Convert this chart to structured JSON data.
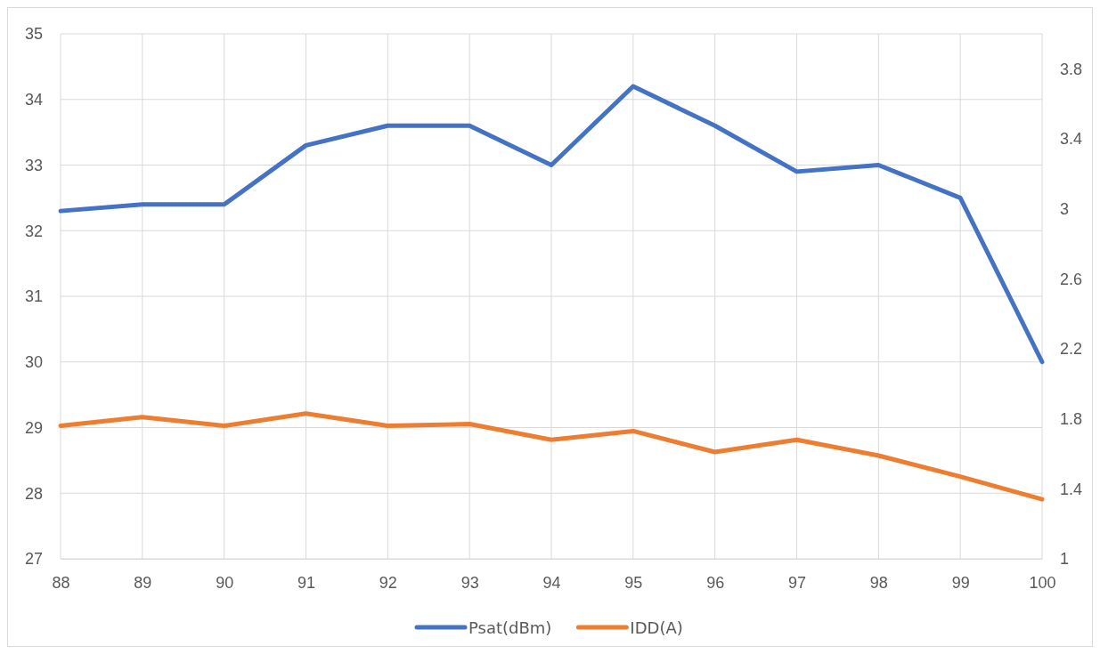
{
  "chart_data": {
    "type": "line",
    "x": [
      88,
      89,
      90,
      91,
      92,
      93,
      94,
      95,
      96,
      97,
      98,
      99,
      100
    ],
    "xlim": [
      88,
      100
    ],
    "xticks": [
      88,
      89,
      90,
      91,
      92,
      93,
      94,
      95,
      96,
      97,
      98,
      99,
      100
    ],
    "ylim": [
      27,
      35
    ],
    "yticks": [
      27,
      28,
      29,
      30,
      31,
      32,
      33,
      34,
      35
    ],
    "y2lim": [
      1,
      4
    ],
    "y2ticks": [
      1,
      1.4,
      1.8,
      2.2,
      2.6,
      3,
      3.4,
      3.8
    ],
    "grid": true,
    "legend": "bottom",
    "marker": "none",
    "line_style": "solid",
    "series": [
      {
        "name": "Psat(dBm)",
        "color": "#4472c4",
        "values": [
          32.3,
          32.4,
          32.4,
          33.3,
          33.6,
          33.6,
          33.0,
          34.2,
          33.6,
          32.9,
          33.0,
          32.5,
          30.0
        ]
      },
      {
        "name": "IDD(A)",
        "color": "#ed7d31",
        "axis": "y2",
        "values": [
          1.76,
          1.81,
          1.76,
          1.83,
          1.76,
          1.77,
          1.68,
          1.73,
          1.61,
          1.68,
          1.59,
          1.47,
          1.34
        ]
      }
    ]
  }
}
